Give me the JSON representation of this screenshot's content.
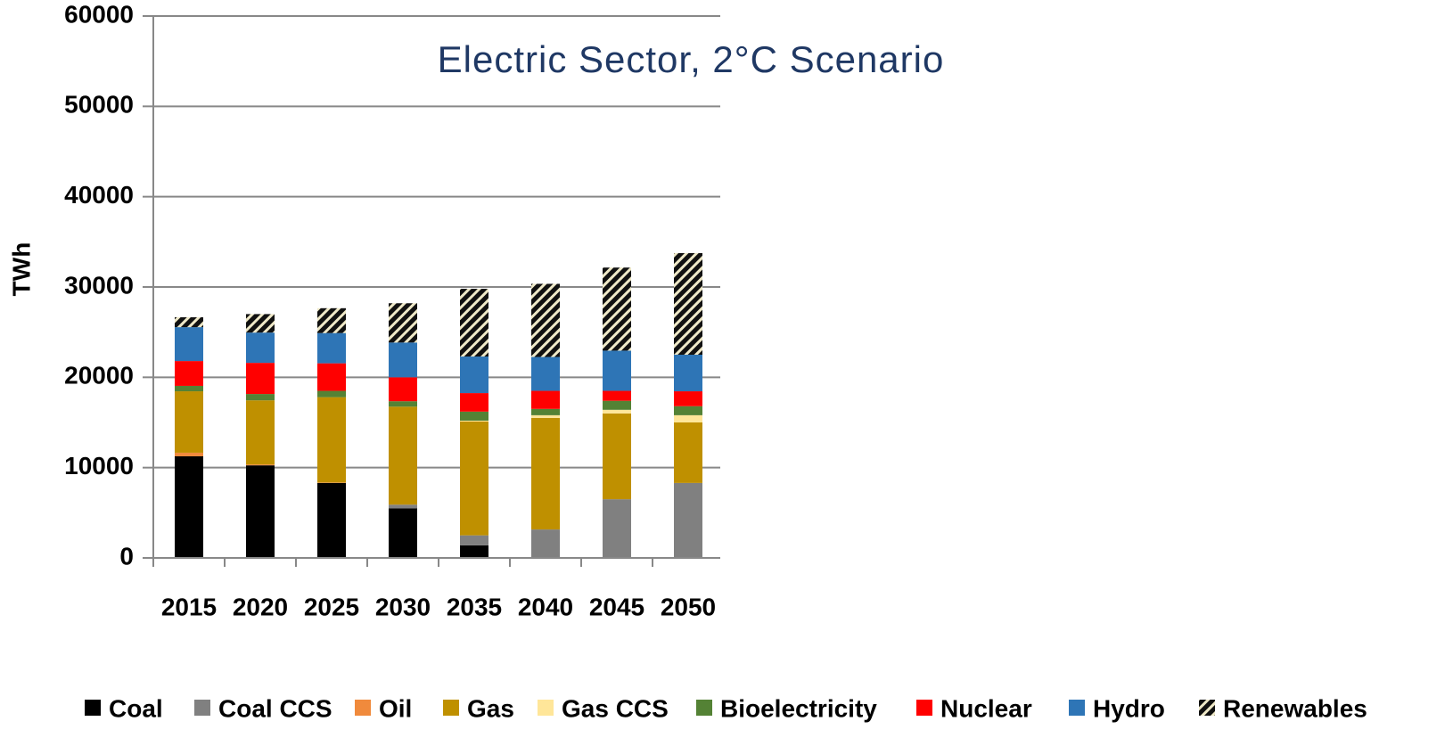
{
  "chart_data": {
    "type": "stacked_bar",
    "title": "Electric Sector, 2°C Scenario",
    "y_label": "TWh",
    "categories": [
      "2015",
      "2020",
      "2025",
      "2030",
      "2035",
      "2040",
      "2045",
      "2050"
    ],
    "series": [
      {
        "name": "Coal",
        "color": "#000000",
        "values": [
          11250,
          10250,
          8300,
          5500,
          1400,
          0,
          0,
          0
        ]
      },
      {
        "name": "Coal CCS",
        "color": "#808080",
        "values": [
          0,
          0,
          0,
          400,
          1100,
          3150,
          6500,
          8300
        ]
      },
      {
        "name": "Oil",
        "color": "#f08a3c",
        "values": [
          400,
          100,
          50,
          0,
          0,
          0,
          0,
          0
        ]
      },
      {
        "name": "Gas",
        "color": "#bf9000",
        "values": [
          6800,
          7100,
          9450,
          10850,
          12600,
          12350,
          9500,
          6700
        ]
      },
      {
        "name": "Gas CCS",
        "color": "#ffe699",
        "values": [
          0,
          0,
          0,
          0,
          100,
          300,
          400,
          800
        ]
      },
      {
        "name": "Bioelectricity",
        "color": "#548235",
        "values": [
          600,
          700,
          700,
          600,
          1000,
          700,
          1000,
          1000
        ]
      },
      {
        "name": "Nuclear",
        "color": "#ff0000",
        "values": [
          2750,
          3450,
          3050,
          2650,
          2050,
          2000,
          1100,
          1650
        ]
      },
      {
        "name": "Hydro",
        "color": "#2e75b6",
        "values": [
          3750,
          3350,
          3350,
          3850,
          4050,
          3750,
          4450,
          4050
        ]
      },
      {
        "name": "Renewables",
        "color": "#111111",
        "hatch": true,
        "values": [
          1100,
          2050,
          2750,
          4350,
          7500,
          8100,
          9200,
          11250
        ]
      }
    ],
    "ylim": [
      0,
      60000
    ],
    "yticks": [
      0,
      10000,
      20000,
      30000,
      40000,
      50000,
      60000
    ],
    "grid": true,
    "legend": "bottom"
  }
}
